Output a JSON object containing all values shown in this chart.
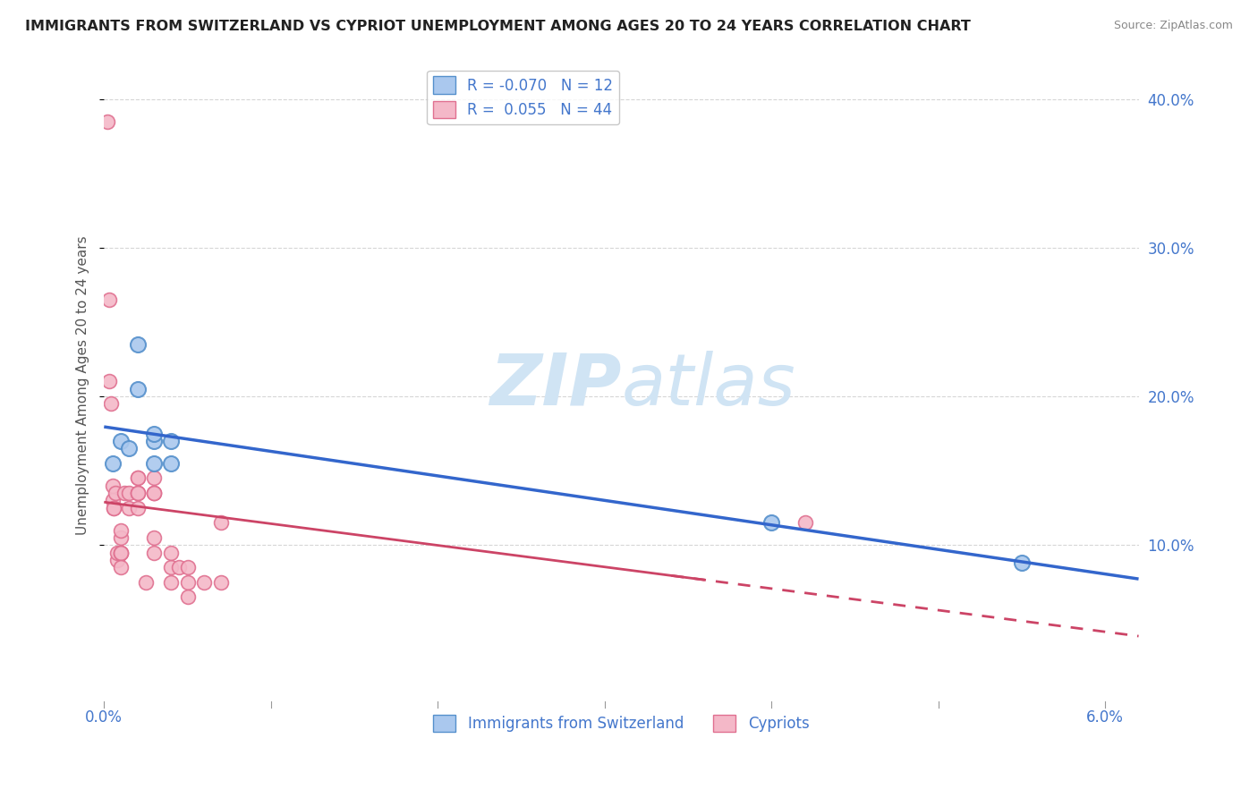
{
  "title": "IMMIGRANTS FROM SWITZERLAND VS CYPRIOT UNEMPLOYMENT AMONG AGES 20 TO 24 YEARS CORRELATION CHART",
  "source": "Source: ZipAtlas.com",
  "ylabel": "Unemployment Among Ages 20 to 24 years",
  "xlim": [
    0.0,
    0.062
  ],
  "ylim": [
    -0.005,
    0.42
  ],
  "ytick_positions": [
    0.1,
    0.2,
    0.3,
    0.4
  ],
  "blue_R": "-0.070",
  "blue_N": "12",
  "pink_R": "0.055",
  "pink_N": "44",
  "blue_fill": "#aac8ee",
  "pink_fill": "#f4b8c8",
  "blue_edge": "#5590cc",
  "pink_edge": "#e07090",
  "blue_line_color": "#3366cc",
  "pink_line_color": "#cc4466",
  "axis_label_color": "#4477cc",
  "watermark_color": "#d0e4f4",
  "legend_label_blue": "Immigrants from Switzerland",
  "legend_label_pink": "Cypriots",
  "blue_scatter_x": [
    0.0005,
    0.001,
    0.0015,
    0.002,
    0.002,
    0.003,
    0.003,
    0.003,
    0.004,
    0.004,
    0.04,
    0.055
  ],
  "blue_scatter_y": [
    0.155,
    0.17,
    0.165,
    0.235,
    0.205,
    0.17,
    0.155,
    0.175,
    0.17,
    0.155,
    0.115,
    0.088
  ],
  "pink_scatter_x": [
    0.0002,
    0.0003,
    0.0003,
    0.0004,
    0.0005,
    0.0005,
    0.0006,
    0.0006,
    0.0007,
    0.0008,
    0.0008,
    0.001,
    0.001,
    0.001,
    0.001,
    0.001,
    0.001,
    0.0012,
    0.0015,
    0.0015,
    0.002,
    0.002,
    0.002,
    0.002,
    0.002,
    0.002,
    0.0025,
    0.003,
    0.003,
    0.003,
    0.003,
    0.003,
    0.003,
    0.004,
    0.004,
    0.004,
    0.0045,
    0.005,
    0.005,
    0.005,
    0.006,
    0.007,
    0.007,
    0.042
  ],
  "pink_scatter_y": [
    0.385,
    0.21,
    0.265,
    0.195,
    0.13,
    0.14,
    0.125,
    0.125,
    0.135,
    0.09,
    0.095,
    0.095,
    0.105,
    0.095,
    0.095,
    0.085,
    0.11,
    0.135,
    0.125,
    0.135,
    0.145,
    0.135,
    0.125,
    0.135,
    0.135,
    0.145,
    0.075,
    0.135,
    0.145,
    0.135,
    0.135,
    0.105,
    0.095,
    0.085,
    0.095,
    0.075,
    0.085,
    0.085,
    0.075,
    0.065,
    0.075,
    0.115,
    0.075,
    0.115
  ],
  "pink_solid_xlim": [
    0.0,
    0.036
  ],
  "pink_dash_xlim": [
    0.034,
    0.062
  ]
}
